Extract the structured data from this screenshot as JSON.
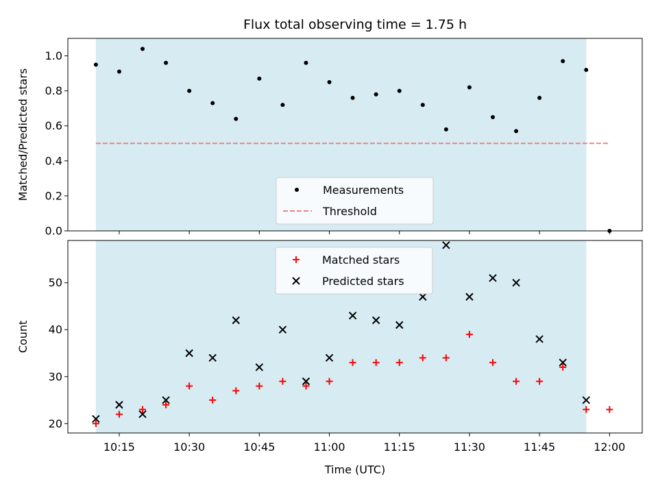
{
  "chart_data": [
    {
      "type": "scatter",
      "title": "Flux total observing time = 1.75 h",
      "xlabel": "",
      "ylabel": "Matched/Predicted stars",
      "xlim": [
        "10:04",
        "12:07"
      ],
      "ylim": [
        0,
        1.1
      ],
      "yticks": [
        "0.0",
        "0.2",
        "0.4",
        "0.6",
        "0.8",
        "1.0"
      ],
      "shaded_span": [
        "10:10",
        "11:55"
      ],
      "shade_color": "#add8e6",
      "legend_position": "lower center",
      "series": [
        {
          "name": "Measurements",
          "marker": "dot",
          "color": "#000000",
          "x": [
            "10:10",
            "10:15",
            "10:20",
            "10:25",
            "10:30",
            "10:35",
            "10:40",
            "10:45",
            "10:50",
            "10:55",
            "11:00",
            "11:05",
            "11:10",
            "11:15",
            "11:20",
            "11:25",
            "11:30",
            "11:35",
            "11:40",
            "11:45",
            "11:50",
            "11:55",
            "12:00"
          ],
          "y": [
            0.95,
            0.91,
            1.04,
            0.96,
            0.8,
            0.73,
            0.64,
            0.87,
            0.72,
            0.96,
            0.85,
            0.76,
            0.78,
            0.8,
            0.72,
            0.58,
            0.82,
            0.65,
            0.57,
            0.76,
            0.97,
            0.92,
            0.0
          ]
        }
      ],
      "threshold": {
        "name": "Threshold",
        "value": 0.5,
        "x_from": "10:10",
        "x_to": "12:00",
        "color": "#f08080",
        "style": "dashed"
      }
    },
    {
      "type": "scatter",
      "xlabel": "Time (UTC)",
      "ylabel": "Count",
      "xlim": [
        "10:04",
        "12:07"
      ],
      "ylim": [
        18,
        59
      ],
      "yticks": [
        "20",
        "30",
        "40",
        "50"
      ],
      "xticks": [
        "10:15",
        "10:30",
        "10:45",
        "11:00",
        "11:15",
        "11:30",
        "11:45",
        "12:00"
      ],
      "shaded_span": [
        "10:10",
        "11:55"
      ],
      "shade_color": "#add8e6",
      "legend_position": "upper center",
      "series": [
        {
          "name": "Matched stars",
          "marker": "plus",
          "color": "#ff0000",
          "x": [
            "10:10",
            "10:15",
            "10:20",
            "10:25",
            "10:30",
            "10:35",
            "10:40",
            "10:45",
            "10:50",
            "10:55",
            "11:00",
            "11:05",
            "11:10",
            "11:15",
            "11:20",
            "11:25",
            "11:30",
            "11:35",
            "11:40",
            "11:45",
            "11:50",
            "11:55",
            "12:00"
          ],
          "y": [
            20,
            22,
            23,
            24,
            28,
            25,
            27,
            28,
            29,
            28,
            29,
            33,
            33,
            33,
            34,
            34,
            39,
            33,
            29,
            29,
            32,
            23,
            23
          ]
        },
        {
          "name": "Predicted stars",
          "marker": "x",
          "color": "#000000",
          "x": [
            "10:10",
            "10:15",
            "10:20",
            "10:25",
            "10:30",
            "10:35",
            "10:40",
            "10:45",
            "10:50",
            "10:55",
            "11:00",
            "11:05",
            "11:10",
            "11:15",
            "11:20",
            "11:25",
            "11:30",
            "11:35",
            "11:40",
            "11:45",
            "11:50",
            "11:55"
          ],
          "y": [
            21,
            24,
            22,
            25,
            35,
            34,
            42,
            32,
            40,
            29,
            34,
            43,
            42,
            41,
            47,
            58,
            47,
            51,
            50,
            38,
            33,
            25
          ]
        }
      ]
    }
  ]
}
